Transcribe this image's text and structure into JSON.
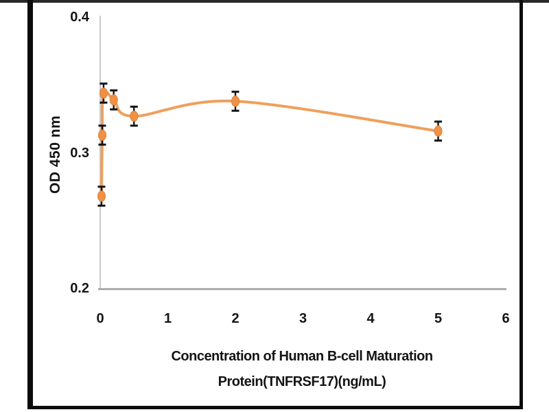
{
  "figure": {
    "background": "#ffffff",
    "frame_color": "#0c0c0c",
    "top_edge_color": "#282828"
  },
  "chart_data": {
    "type": "line",
    "title": "",
    "xlabel": "Concentration of Human B-cell Maturation Protein(TNFRSF17)(ng/mL)",
    "xlabel_lines": [
      "Concentration of Human B-cell Maturation",
      "Protein(TNFRSF17)(ng/mL)"
    ],
    "ylabel": "OD 450 nm",
    "xlim": [
      0,
      6
    ],
    "ylim": [
      0.2,
      0.4
    ],
    "x_ticks": [
      0,
      1,
      2,
      3,
      4,
      5,
      6
    ],
    "x_tick_labels": [
      "0",
      "1",
      "2",
      "3",
      "4",
      "5",
      "6"
    ],
    "y_ticks": [
      0.4,
      0.3,
      0.2
    ],
    "y_tick_labels": [
      "0.4",
      "0.3",
      "0.2"
    ],
    "grid": false,
    "legend": "none",
    "axis_color": "#9c9c9c",
    "series": [
      {
        "name": "OD 450 nm",
        "x": [
          0.02,
          0.03,
          0.05,
          0.2,
          0.5,
          2,
          5
        ],
        "y": [
          0.268,
          0.313,
          0.344,
          0.339,
          0.327,
          0.338,
          0.316
        ],
        "y_error": [
          0.007,
          0.007,
          0.007,
          0.007,
          0.007,
          0.007,
          0.007
        ],
        "marker": "ellipse",
        "color": "#EFA05B",
        "marker_color": "#F09145",
        "marker_edge_color": "#DE8238",
        "error_color": "#141414"
      }
    ]
  }
}
